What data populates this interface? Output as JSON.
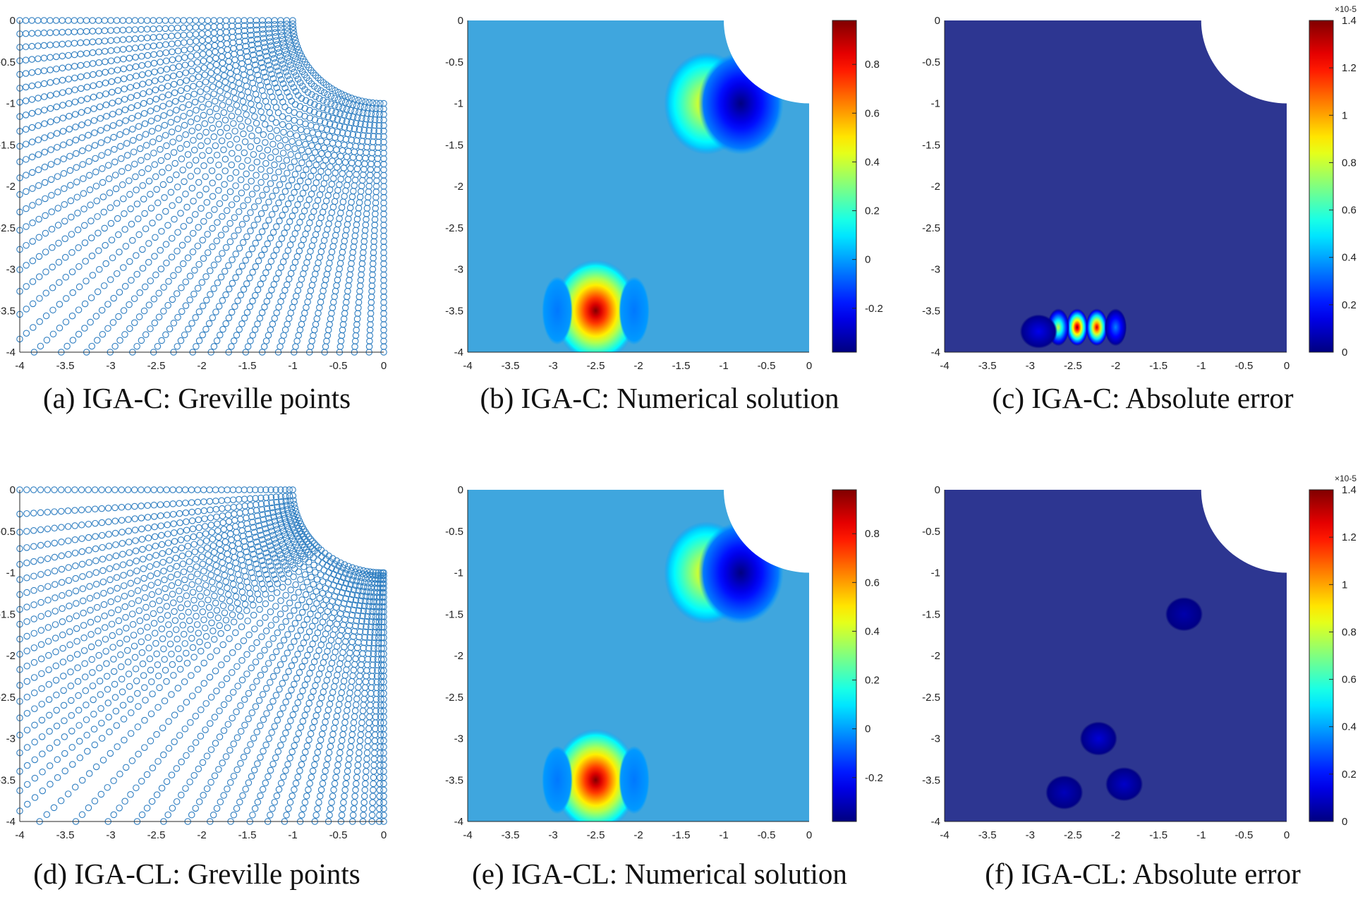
{
  "colors": {
    "pos_ring": "#2f7ec1",
    "field_bg": "#3fa6de",
    "error_bg": "#2d3691",
    "axis": "#262626"
  },
  "chart_data": [
    {
      "id": "a",
      "type": "scatter",
      "title": "(a)  IGA-C: Greville points",
      "xlim": [
        -4,
        0
      ],
      "ylim": [
        -4,
        0
      ],
      "xticks": [
        -4,
        -3.5,
        -3,
        -2.5,
        -2,
        -1.5,
        -1,
        -0.5,
        0
      ],
      "yticks": [
        0,
        -0.5,
        -1,
        -1.5,
        -2,
        -2.5,
        -3,
        -3.5,
        -4
      ],
      "xticklabels": [
        "-4",
        "-3.5",
        "-3",
        "-2.5",
        "-2",
        "-1.5",
        "-1",
        "-0.5",
        "0"
      ],
      "yticklabels": [
        "0",
        "-0.5",
        "-1",
        "-1.5",
        "-2",
        "-2.5",
        "-3",
        "-3.5",
        "-4"
      ],
      "domain": "quarter square [-4,0]x[-4,0] with circular hole of radius 1 centered at (0,0)",
      "marker": "open circle",
      "mesh": "uniform"
    },
    {
      "id": "b",
      "type": "heatmap",
      "title": "(b)  IGA-C: Numerical solution",
      "xlim": [
        -4,
        0
      ],
      "ylim": [
        -4,
        0
      ],
      "xticks": [
        -4,
        -3.5,
        -3,
        -2.5,
        -2,
        -1.5,
        -1,
        -0.5,
        0
      ],
      "yticks": [
        0,
        -0.5,
        -1,
        -1.5,
        -2,
        -2.5,
        -3,
        -3.5,
        -4
      ],
      "xticklabels": [
        "-4",
        "-3.5",
        "-3",
        "-2.5",
        "-2",
        "-1.5",
        "-1",
        "-0.5",
        "0"
      ],
      "yticklabels": [
        "0",
        "-0.5",
        "-1",
        "-1.5",
        "-2",
        "-2.5",
        "-3",
        "-3.5",
        "-4"
      ],
      "colorbar": {
        "range": [
          -0.38,
          0.98
        ],
        "ticks": [
          0.8,
          0.6,
          0.4,
          0.2,
          0,
          -0.2
        ],
        "ticklabels": [
          "0.8",
          "0.6",
          "0.4",
          "0.2",
          "0",
          "-0.2"
        ]
      },
      "features": [
        {
          "x": -2.5,
          "y": -3.5,
          "value": 0.98
        },
        {
          "x": -1.2,
          "y": -1.0,
          "value": 0.5
        },
        {
          "x": -0.8,
          "y": -1.0,
          "value": -0.38
        },
        {
          "x": -2.95,
          "y": -3.5,
          "value": -0.05
        },
        {
          "x": -2.05,
          "y": -3.5,
          "value": -0.05
        }
      ]
    },
    {
      "id": "c",
      "type": "heatmap",
      "title": "(c)  IGA-C: Absolute error",
      "xlim": [
        -4,
        0
      ],
      "ylim": [
        -4,
        0
      ],
      "xticks": [
        -4,
        -3.5,
        -3,
        -2.5,
        -2,
        -1.5,
        -1,
        -0.5,
        0
      ],
      "yticks": [
        0,
        -0.5,
        -1,
        -1.5,
        -2,
        -2.5,
        -3,
        -3.5,
        -4
      ],
      "xticklabels": [
        "-4",
        "-3.5",
        "-3",
        "-2.5",
        "-2",
        "-1.5",
        "-1",
        "-0.5",
        "0"
      ],
      "yticklabels": [
        "0",
        "-0.5",
        "-1",
        "-1.5",
        "-2",
        "-2.5",
        "-3",
        "-3.5",
        "-4"
      ],
      "colorbar": {
        "range": [
          0,
          1.4
        ],
        "ticks": [
          1.4,
          1.2,
          1,
          0.8,
          0.6,
          0.4,
          0.2,
          0
        ],
        "ticklabels": [
          "1.4",
          "1.2",
          "1",
          "0.8",
          "0.6",
          "0.4",
          "0.2",
          "0"
        ],
        "exponent": "×10-5"
      },
      "features": [
        {
          "x": -2.45,
          "y": -3.7,
          "value": 1.4
        },
        {
          "x": -2.22,
          "y": -3.7,
          "value": 1.3
        },
        {
          "x": -2.67,
          "y": -3.7,
          "value": 0.8
        },
        {
          "x": -2.0,
          "y": -3.7,
          "value": 0.35
        },
        {
          "x": -2.9,
          "y": -3.75,
          "value": 0.15
        }
      ]
    },
    {
      "id": "d",
      "type": "scatter",
      "title": "(d)  IGA-CL: Greville points",
      "xlim": [
        -4,
        0
      ],
      "ylim": [
        -4,
        0
      ],
      "xticks": [
        -4,
        -3.5,
        -3,
        -2.5,
        -2,
        -1.5,
        -1,
        -0.5,
        0
      ],
      "yticks": [
        0,
        -0.5,
        -1,
        -1.5,
        -2,
        -2.5,
        -3,
        -3.5,
        -4
      ],
      "xticklabels": [
        "-4",
        "-3.5",
        "-3",
        "-2.5",
        "-2",
        "-1.5",
        "-1",
        "-0.5",
        "0"
      ],
      "yticklabels": [
        "0",
        "-0.5",
        "-1",
        "-1.5",
        "-2",
        "-2.5",
        "-3",
        "-3.5",
        "-4"
      ],
      "domain": "quarter square [-4,0]x[-4,0] with circular hole of radius 1 centered at (0,0)",
      "marker": "open circle",
      "mesh": "locally refined"
    },
    {
      "id": "e",
      "type": "heatmap",
      "title": "(e)  IGA-CL: Numerical solution",
      "xlim": [
        -4,
        0
      ],
      "ylim": [
        -4,
        0
      ],
      "xticks": [
        -4,
        -3.5,
        -3,
        -2.5,
        -2,
        -1.5,
        -1,
        -0.5,
        0
      ],
      "yticks": [
        0,
        -0.5,
        -1,
        -1.5,
        -2,
        -2.5,
        -3,
        -3.5,
        -4
      ],
      "xticklabels": [
        "-4",
        "-3.5",
        "-3",
        "-2.5",
        "-2",
        "-1.5",
        "-1",
        "-0.5",
        "0"
      ],
      "yticklabels": [
        "0",
        "-0.5",
        "-1",
        "-1.5",
        "-2",
        "-2.5",
        "-3",
        "-3.5",
        "-4"
      ],
      "colorbar": {
        "range": [
          -0.38,
          0.98
        ],
        "ticks": [
          0.8,
          0.6,
          0.4,
          0.2,
          0,
          -0.2
        ],
        "ticklabels": [
          "0.8",
          "0.6",
          "0.4",
          "0.2",
          "0",
          "-0.2"
        ]
      },
      "features": [
        {
          "x": -2.5,
          "y": -3.5,
          "value": 0.98
        },
        {
          "x": -1.2,
          "y": -1.0,
          "value": 0.5
        },
        {
          "x": -0.8,
          "y": -1.0,
          "value": -0.38
        },
        {
          "x": -2.95,
          "y": -3.5,
          "value": -0.05
        },
        {
          "x": -2.05,
          "y": -3.5,
          "value": -0.05
        }
      ]
    },
    {
      "id": "f",
      "type": "heatmap",
      "title": "(f)  IGA-CL: Absolute error",
      "xlim": [
        -4,
        0
      ],
      "ylim": [
        -4,
        0
      ],
      "xticks": [
        -4,
        -3.5,
        -3,
        -2.5,
        -2,
        -1.5,
        -1,
        -0.5,
        0
      ],
      "yticks": [
        0,
        -0.5,
        -1,
        -1.5,
        -2,
        -2.5,
        -3,
        -3.5,
        -4
      ],
      "xticklabels": [
        "-4",
        "-3.5",
        "-3",
        "-2.5",
        "-2",
        "-1.5",
        "-1",
        "-0.5",
        "0"
      ],
      "yticklabels": [
        "0",
        "-0.5",
        "-1",
        "-1.5",
        "-2",
        "-2.5",
        "-3",
        "-3.5",
        "-4"
      ],
      "colorbar": {
        "range": [
          0,
          1.4
        ],
        "ticks": [
          1.4,
          1.2,
          1,
          0.8,
          0.6,
          0.4,
          0.2,
          0
        ],
        "ticklabels": [
          "1.4",
          "1.2",
          "1",
          "0.8",
          "0.6",
          "0.4",
          "0.2",
          "0"
        ],
        "exponent": "×10-5"
      },
      "features": [
        {
          "x": -2.2,
          "y": -3.0,
          "value": 0.12
        },
        {
          "x": -1.9,
          "y": -3.55,
          "value": 0.1
        },
        {
          "x": -2.6,
          "y": -3.65,
          "value": 0.08
        },
        {
          "x": -1.2,
          "y": -1.5,
          "value": 0.06
        }
      ]
    }
  ]
}
